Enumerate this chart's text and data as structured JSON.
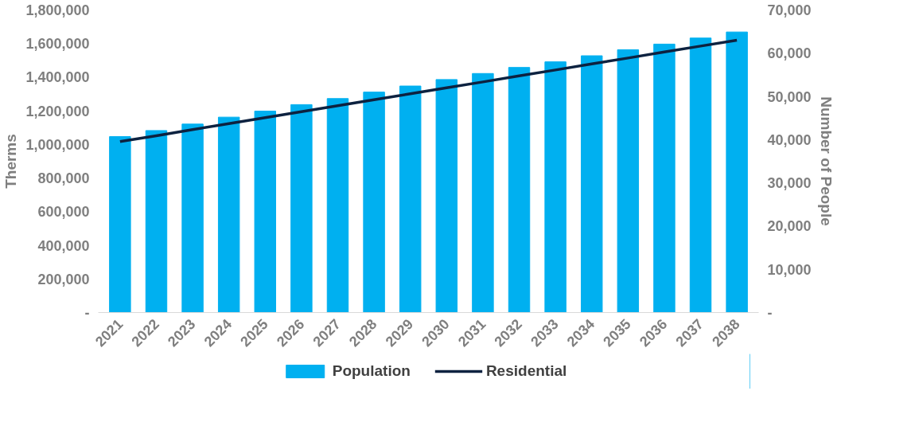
{
  "chart_data": {
    "type": "bar",
    "ylabel": "Therms",
    "y2label": "Number of People",
    "categories": [
      "2021",
      "2022",
      "2023",
      "2024",
      "2025",
      "2026",
      "2027",
      "2028",
      "2029",
      "2030",
      "2031",
      "2032",
      "2033",
      "2034",
      "2035",
      "2036",
      "2037",
      "2038"
    ],
    "series": [
      {
        "name": "Population",
        "axis": "y2",
        "color": "#00b0f0",
        "values": [
          40700,
          42100,
          43600,
          45200,
          46600,
          48100,
          49500,
          51000,
          52400,
          53900,
          55300,
          56700,
          58000,
          59400,
          60800,
          62100,
          63500,
          64900
        ]
      },
      {
        "name": "Residential",
        "type": "line",
        "color": "#0d2240",
        "values": [
          1017000,
          1052000,
          1088000,
          1124000,
          1159000,
          1195000,
          1230000,
          1266000,
          1301000,
          1337000,
          1372000,
          1408000,
          1443000,
          1479000,
          1514000,
          1550000,
          1585000,
          1620000
        ]
      }
    ],
    "ylim": [
      0,
      1800000
    ],
    "yticks": [
      {
        "value": 0,
        "label": "-"
      },
      {
        "value": 200000,
        "label": "200,000"
      },
      {
        "value": 400000,
        "label": "400,000"
      },
      {
        "value": 600000,
        "label": "600,000"
      },
      {
        "value": 800000,
        "label": "800,000"
      },
      {
        "value": 1000000,
        "label": "1,000,000"
      },
      {
        "value": 1200000,
        "label": "1,200,000"
      },
      {
        "value": 1400000,
        "label": "1,400,000"
      },
      {
        "value": 1600000,
        "label": "1,600,000"
      },
      {
        "value": 1800000,
        "label": "1,800,000"
      }
    ],
    "y2lim": [
      0,
      70000
    ],
    "y2ticks": [
      {
        "value": 0,
        "label": "-"
      },
      {
        "value": 10000,
        "label": "10,000"
      },
      {
        "value": 20000,
        "label": "20,000"
      },
      {
        "value": 30000,
        "label": "30,000"
      },
      {
        "value": 40000,
        "label": "40,000"
      },
      {
        "value": 50000,
        "label": "50,000"
      },
      {
        "value": 60000,
        "label": "60,000"
      },
      {
        "value": 70000,
        "label": "70,000"
      }
    ],
    "grid": false,
    "legend": "bottom",
    "marker": "none",
    "line_style": "solid"
  }
}
